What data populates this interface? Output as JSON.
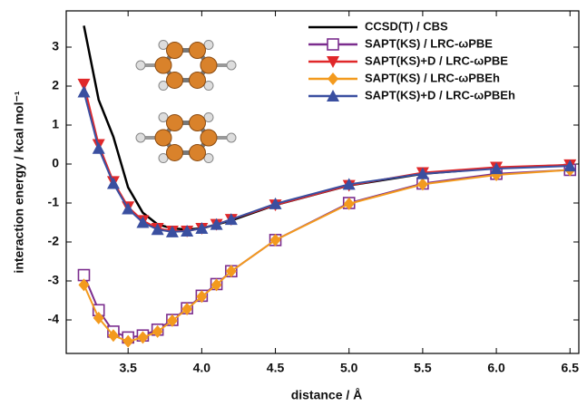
{
  "chart_data": {
    "type": "line",
    "xlabel": "distance / Å",
    "ylabel": "interaction energy  / kcal mol⁻¹",
    "x": [
      3.2,
      3.3,
      3.4,
      3.5,
      3.6,
      3.7,
      3.8,
      3.9,
      4.0,
      4.1,
      4.2,
      4.5,
      5.0,
      5.5,
      6.0,
      6.5
    ],
    "series": [
      {
        "name": "CCSD(T) / CBS",
        "color": "#000000",
        "marker": "none",
        "values": [
          3.55,
          1.65,
          0.7,
          -0.6,
          -1.25,
          -1.55,
          -1.65,
          -1.68,
          -1.65,
          -1.55,
          -1.45,
          -1.05,
          -0.55,
          -0.25,
          -0.1,
          -0.03
        ]
      },
      {
        "name": "SAPT(KS) / LRC-ωPBE",
        "color": "#7b2d8e",
        "marker": "square-open",
        "values": [
          -2.85,
          -3.75,
          -4.3,
          -4.45,
          -4.4,
          -4.25,
          -4.0,
          -3.7,
          -3.38,
          -3.08,
          -2.75,
          -1.95,
          -1.0,
          -0.5,
          -0.25,
          -0.15
        ]
      },
      {
        "name": "SAPT(KS)+D / LRC-ωPBE",
        "color": "#e0282a",
        "marker": "triangle-down",
        "values": [
          2.05,
          0.5,
          -0.45,
          -1.1,
          -1.45,
          -1.65,
          -1.72,
          -1.72,
          -1.65,
          -1.55,
          -1.42,
          -1.05,
          -0.55,
          -0.22,
          -0.08,
          -0.02
        ]
      },
      {
        "name": "SAPT(KS) / LRC-ωPBEh",
        "color": "#f39a1e",
        "marker": "diamond",
        "values": [
          -3.1,
          -3.95,
          -4.4,
          -4.55,
          -4.45,
          -4.3,
          -4.02,
          -3.72,
          -3.4,
          -3.1,
          -2.75,
          -1.95,
          -1.02,
          -0.52,
          -0.28,
          -0.15
        ]
      },
      {
        "name": "SAPT(KS)+D / LRC-ωPBEh",
        "color": "#3a4fa0",
        "marker": "triangle-up",
        "values": [
          1.85,
          0.4,
          -0.5,
          -1.15,
          -1.5,
          -1.68,
          -1.74,
          -1.72,
          -1.65,
          -1.55,
          -1.42,
          -1.02,
          -0.52,
          -0.25,
          -0.12,
          -0.05
        ]
      }
    ],
    "xlim": [
      3.08,
      6.56
    ],
    "ylim": [
      -4.86,
      3.93
    ],
    "xticks": [
      3.5,
      {
        "value": 4,
        "label": "4.0"
      },
      4.5,
      {
        "value": 5,
        "label": "5.0"
      },
      5.5,
      {
        "value": 6,
        "label": "6.0"
      },
      6.5
    ],
    "yticks": [
      -4,
      -3,
      -2,
      -1,
      0,
      1,
      2,
      3
    ],
    "legend": "upper right"
  }
}
